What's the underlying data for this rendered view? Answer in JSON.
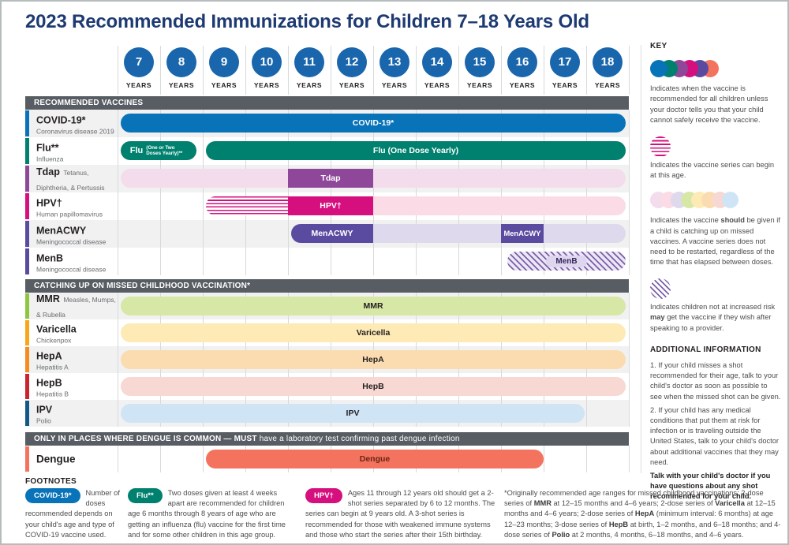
{
  "title": "2023 Recommended Immunizations for Children 7–18 Years Old",
  "age_axis": {
    "ages": [
      "7",
      "8",
      "9",
      "10",
      "11",
      "12",
      "13",
      "14",
      "15",
      "16",
      "17",
      "18"
    ],
    "unit_label": "YEARS"
  },
  "sections": [
    {
      "header": [
        {
          "t": "RECOMMENDED VACCINES",
          "b": true
        }
      ],
      "rows": [
        {
          "name": "COVID-19*",
          "subtitle": "Coronavirus disease 2019",
          "tab_color": "#0873b8",
          "bars": [
            {
              "style": "solid",
              "color": "#0873b8",
              "label": "COVID-19*",
              "age_start": 7,
              "age_end": 18
            }
          ]
        },
        {
          "name": "Flu**",
          "subtitle": "Influenza",
          "tab_color": "#00806e",
          "bars": [
            {
              "style": "solid",
              "color": "#00806e",
              "label_big": "Flu",
              "label_small": "(One or Two Doses Yearly)**",
              "age_start": 7,
              "age_end": 8
            },
            {
              "style": "solid",
              "color": "#00806e",
              "label": "Flu (One Dose Yearly)",
              "age_start": 9,
              "age_end": 18
            }
          ]
        },
        {
          "name": "Tdap",
          "subtitle": "Tetanus, Diphtheria, & Pertussis",
          "tab_color": "#8f4899",
          "bars": [
            {
              "style": "light",
              "color": "#f3dcec",
              "label": "",
              "age_start": 7,
              "age_end": 18
            },
            {
              "style": "solid",
              "color": "#8f4899",
              "label": "Tdap",
              "age_start": 11,
              "age_end": 12
            }
          ]
        },
        {
          "name": "HPV†",
          "subtitle": "Human papillomavirus",
          "tab_color": "#d60f7e",
          "bars": [
            {
              "style": "hatch-begin",
              "color": "#d60f7e",
              "label": "",
              "age_start": 9,
              "age_end": 10
            },
            {
              "style": "solid",
              "color": "#d60f7e",
              "label": "HPV†",
              "age_start": 11,
              "age_end": 12
            },
            {
              "style": "light",
              "color": "#fadbe6",
              "label": "",
              "age_start": 13,
              "age_end": 18
            }
          ]
        },
        {
          "name": "MenACWY",
          "subtitle": "Meningococcal disease",
          "tab_color": "#5b4ba0",
          "bars": [
            {
              "style": "solid",
              "color": "#5b4ba0",
              "label": "MenACWY",
              "age_start": 11,
              "age_end": 12
            },
            {
              "style": "light",
              "color": "#ded9ed",
              "label": "",
              "age_start": 13,
              "age_end": 18
            },
            {
              "style": "solid",
              "color": "#5b4ba0",
              "label": "MenACWY",
              "age_start": 16,
              "age_end": 16
            }
          ]
        },
        {
          "name": "MenB",
          "subtitle": "Meningococcal disease",
          "tab_color": "#584a9e",
          "bars": [
            {
              "style": "hatch-may",
              "color": "#7b5fa9",
              "label": "MenB",
              "age_start": 16,
              "age_end": 18
            }
          ]
        }
      ]
    },
    {
      "header": [
        {
          "t": "CATCHING UP ON MISSED CHILDHOOD VACCINATION*",
          "b": true
        }
      ],
      "rows": [
        {
          "name": "MMR",
          "subtitle": "Measles, Mumps, & Rubella",
          "tab_color": "#8dc63f",
          "bars": [
            {
              "style": "light",
              "color": "#d7e7a5",
              "label": "MMR",
              "age_start": 7,
              "age_end": 18
            }
          ]
        },
        {
          "name": "Varicella",
          "subtitle": "Chickenpox",
          "tab_color": "#f9a51a",
          "bars": [
            {
              "style": "light",
              "color": "#fdeab5",
              "label": "Varicella",
              "age_start": 7,
              "age_end": 18
            }
          ]
        },
        {
          "name": "HepA",
          "subtitle": "Hepatitis A",
          "tab_color": "#f68b1f",
          "bars": [
            {
              "style": "light",
              "color": "#fbdcb0",
              "label": "HepA",
              "age_start": 7,
              "age_end": 18
            }
          ]
        },
        {
          "name": "HepB",
          "subtitle": "Hepatitis B",
          "tab_color": "#c9252b",
          "bars": [
            {
              "style": "light",
              "color": "#f8d8d3",
              "label": "HepB",
              "age_start": 7,
              "age_end": 18
            }
          ]
        },
        {
          "name": "IPV",
          "subtitle": "Polio",
          "tab_color": "#115a88",
          "bars": [
            {
              "style": "light",
              "color": "#cfe5f6",
              "label": "IPV",
              "age_start": 7,
              "age_end": 17
            }
          ]
        }
      ]
    },
    {
      "header": [
        {
          "t": "ONLY IN PLACES WHERE DENGUE IS COMMON — MUST ",
          "b": true
        },
        {
          "t": "have a laboratory test confirming past dengue infection"
        }
      ],
      "rows": [
        {
          "name": "Dengue",
          "subtitle": "",
          "tab_color": "#f3735e",
          "bars": [
            {
              "style": "solid",
              "color": "#f3735e",
              "label": "Dengue",
              "label_color": "#6b2414",
              "age_start": 9,
              "age_end": 16
            }
          ]
        }
      ]
    }
  ],
  "key": {
    "title": "KEY",
    "items": [
      {
        "icon": "solid-circles",
        "circle_colors": [
          "#0873b8",
          "#00806e",
          "#8f4899",
          "#d60f7e",
          "#5b4ba0",
          "#f3735e"
        ],
        "text": "Indicates when the vaccine is recommended for all children unless your doctor tells you that your child cannot safely receive the vaccine."
      },
      {
        "icon": "hatched-begin-circle",
        "text": "Indicates the vaccine series can begin at this age."
      },
      {
        "icon": "light-circles",
        "circle_colors": [
          "#f3dcec",
          "#fadbe6",
          "#ded9ed",
          "#d7e7a5",
          "#fdeab5",
          "#fbdcb0",
          "#f8d8d3",
          "#cfe5f6"
        ],
        "text_segments": [
          {
            "t": "Indicates the vaccine "
          },
          {
            "t": "should",
            "b": true
          },
          {
            "t": " be given if a child is catching up on missed vaccines. A vaccine series does not need to be restarted, regardless of the time that has elapsed between doses."
          }
        ]
      },
      {
        "icon": "hatched-may-circle",
        "text_segments": [
          {
            "t": "Indicates children not at increased risk "
          },
          {
            "t": "may",
            "b": true
          },
          {
            "t": " get the vaccine if they wish after speaking to a provider."
          }
        ]
      }
    ]
  },
  "additional_info": {
    "title": "ADDITIONAL INFORMATION",
    "paragraphs": [
      "1. If your child misses a shot recommended for their age, talk to your child's doctor as soon as possible to see when the missed shot can be given.",
      "2. If your child has any medical conditions that put them at risk for infection or is traveling outside the United States, talk to your child's doctor about additional vaccines that they may need."
    ],
    "closing": "Talk with your child's doctor if you have questions about any shot recommended for your child."
  },
  "footnotes": {
    "title": "FOOTNOTES",
    "items": [
      {
        "pill": "COVID-19*",
        "pill_color": "#0873b8",
        "text": "Number of doses recommended depends on your child's age and type of COVID-19 vaccine used."
      },
      {
        "pill": "Flu**",
        "pill_color": "#00806e",
        "text": "Two doses given at least 4 weeks apart are recommended for children age 6 months through 8 years of age who are getting an influenza (flu) vaccine for the first time and for some other children in this age group."
      },
      {
        "pill": "HPV†",
        "pill_color": "#d60f7e",
        "text": "Ages 11 through 12 years old should get a 2-shot series separated by 6 to 12 months. The series can begin at 9 years old. A 3-shot series is recommended for those with weakened immune systems and those who start the series after their 15th birthday."
      },
      {
        "text_segments": [
          {
            "t": "*Originally recommended age ranges for missed childhood vaccinations: 2-dose series of "
          },
          {
            "t": "MMR",
            "b": true
          },
          {
            "t": " at 12–15 months and 4–6 years; 2-dose series of "
          },
          {
            "t": "Varicella",
            "b": true
          },
          {
            "t": " at 12–15 months and 4–6 years; 2-dose series of "
          },
          {
            "t": "HepA",
            "b": true
          },
          {
            "t": " (minimum interval: 6 months) at age 12–23 months; 3-dose series of "
          },
          {
            "t": "HepB",
            "b": true
          },
          {
            "t": " at birth, 1–2 months, and 6–18 months; and 4-dose series of "
          },
          {
            "t": "Polio",
            "b": true
          },
          {
            "t": " at 2 months, 4 months, 6–18 months, and 4–6 years."
          }
        ]
      }
    ]
  }
}
